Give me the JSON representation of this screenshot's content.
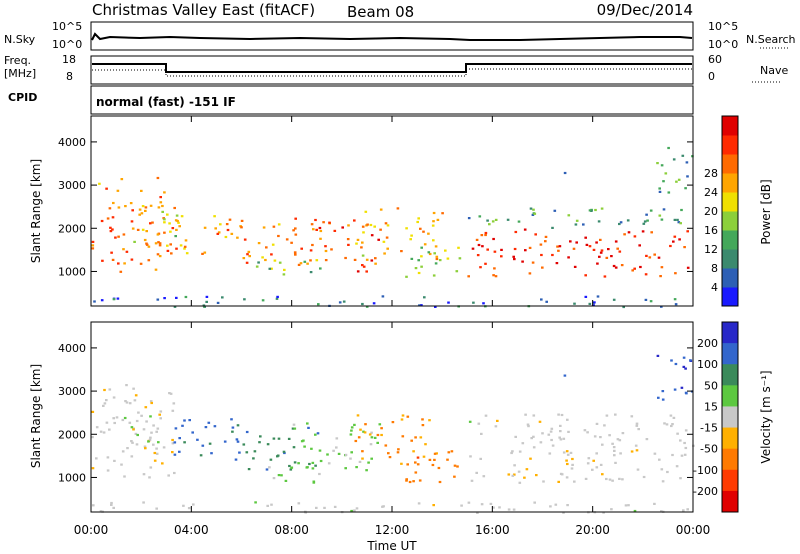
{
  "header": {
    "title": "Christmas Valley East (fitACF)",
    "beam": "Beam 08",
    "date": "09/Dec/2014"
  },
  "top_panels": {
    "nsky_label": "N.Sky",
    "nsky_ticks": [
      "10^5",
      "10^0"
    ],
    "nsearch_label": "N.Search",
    "nsearch_ticks": [
      "10^5",
      "10^0"
    ],
    "freq_label": "Freq.",
    "freq_unit": "[MHz]",
    "freq_ticks": [
      "18",
      "8"
    ],
    "nave_label": "Nave",
    "nave_ticks": [
      "60",
      "0"
    ],
    "cpid_label": "CPID",
    "cpid_text": "normal (fast) -151 IF"
  },
  "chart_data": [
    {
      "type": "heatmap",
      "name": "power",
      "ylabel": "Slant Range [km]",
      "xlabel": "Time UT",
      "x_ticks": [
        "00:00",
        "04:00",
        "08:00",
        "12:00",
        "16:00",
        "20:00",
        "00:00"
      ],
      "y_ticks": [
        "1000",
        "2000",
        "3000",
        "4000"
      ],
      "ylim": [
        200,
        4600
      ],
      "xlim_hours": [
        0,
        24
      ],
      "colorbar": {
        "label": "Power [dB]",
        "ticks": [
          "4",
          "8",
          "12",
          "16",
          "20",
          "24",
          "28"
        ],
        "range": [
          0,
          30
        ],
        "colors": [
          "#1a1aff",
          "#2d5fb5",
          "#3b8a6e",
          "#44a85a",
          "#8ccf3a",
          "#f0e000",
          "#ffa500",
          "#ff6a00",
          "#ff2a00",
          "#e00000"
        ]
      }
    },
    {
      "type": "heatmap",
      "name": "velocity",
      "ylabel": "Slant Range [km]",
      "xlabel": "Time UT",
      "x_ticks": [
        "00:00",
        "04:00",
        "08:00",
        "12:00",
        "16:00",
        "20:00",
        "00:00"
      ],
      "y_ticks": [
        "1000",
        "2000",
        "3000",
        "4000"
      ],
      "ylim": [
        200,
        4600
      ],
      "xlim_hours": [
        0,
        24
      ],
      "colorbar": {
        "label": "Velocity [m s⁻¹]",
        "ticks": [
          "200",
          "100",
          "50",
          "15",
          "-15",
          "-50",
          "-100",
          "-200"
        ],
        "range": [
          -250,
          250
        ],
        "colors": [
          "#2828c8",
          "#3366cc",
          "#3a8a5a",
          "#5cc840",
          "#c8c8c8",
          "#ffb000",
          "#ff7a00",
          "#ff3a00",
          "#e00000"
        ]
      }
    }
  ],
  "echo_regions": [
    {
      "t0": 0.0,
      "t1": 3.3,
      "r0": 1000,
      "r1": 3200,
      "p": 22,
      "v": -10
    },
    {
      "t0": 1.2,
      "t1": 3.6,
      "r0": 1600,
      "r1": 2500,
      "p": 16,
      "v": 20
    },
    {
      "t0": 3.0,
      "t1": 6.0,
      "r0": 1400,
      "r1": 2400,
      "p": 20,
      "v": 160
    },
    {
      "t0": 6.0,
      "t1": 9.0,
      "r0": 1200,
      "r1": 2200,
      "p": 22,
      "v": 120
    },
    {
      "t0": 6.2,
      "t1": 9.2,
      "r0": 900,
      "r1": 1300,
      "p": 12,
      "v": 40
    },
    {
      "t0": 8.0,
      "t1": 11.5,
      "r0": 1000,
      "r1": 2300,
      "p": 24,
      "v": 40
    },
    {
      "t0": 10.5,
      "t1": 14.0,
      "r0": 1300,
      "r1": 2500,
      "p": 18,
      "v": -90
    },
    {
      "t0": 12.5,
      "t1": 14.8,
      "r0": 900,
      "r1": 1700,
      "p": 14,
      "v": -110
    },
    {
      "t0": 15.0,
      "t1": 24.0,
      "r0": 900,
      "r1": 2000,
      "p": 26,
      "v": -5
    },
    {
      "t0": 15.0,
      "t1": 24.0,
      "r0": 2000,
      "r1": 2500,
      "p": 10,
      "v": 0
    },
    {
      "t0": 18.8,
      "t1": 19.4,
      "r0": 3200,
      "r1": 3400,
      "p": 8,
      "v": 200
    },
    {
      "t0": 22.5,
      "t1": 24.0,
      "r0": 2800,
      "r1": 4000,
      "p": 10,
      "v": 180
    },
    {
      "t0": 0.0,
      "t1": 24.0,
      "r0": 200,
      "r1": 450,
      "p": 6,
      "v": 0
    }
  ]
}
